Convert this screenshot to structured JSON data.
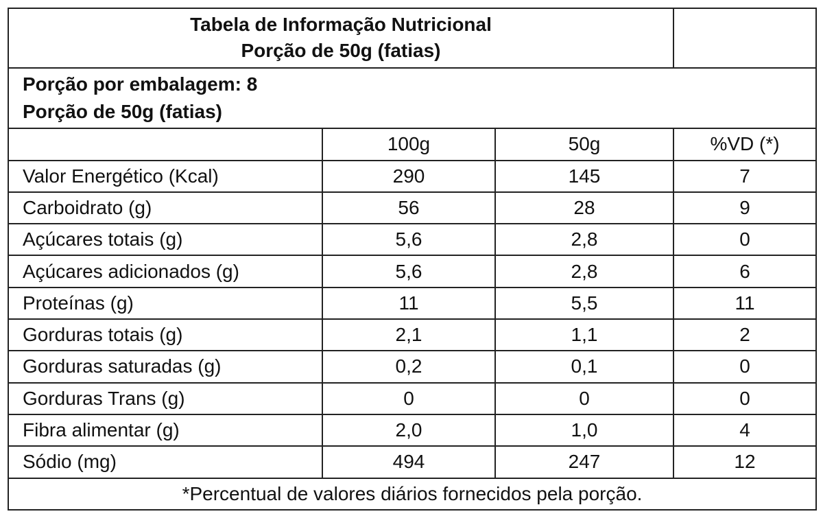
{
  "title": {
    "line1": "Tabela de Informação Nutricional",
    "line2": "Porção de 50g (fatias)"
  },
  "portion_info": {
    "per_package": "Porção por embalagem: 8",
    "portion_size": "Porção de 50g (fatias)"
  },
  "columns": [
    "",
    "100g",
    "50g",
    "%VD (*)"
  ],
  "rows": [
    [
      "Valor Energético (Kcal)",
      "290",
      "145",
      "7"
    ],
    [
      "Carboidrato (g)",
      "56",
      "28",
      "9"
    ],
    [
      "Açúcares totais (g)",
      "5,6",
      "2,8",
      "0"
    ],
    [
      "Açúcares adicionados (g)",
      "5,6",
      "2,8",
      "6"
    ],
    [
      "Proteínas (g)",
      "11",
      "5,5",
      "11"
    ],
    [
      "Gorduras totais (g)",
      "2,1",
      "1,1",
      "2"
    ],
    [
      "Gorduras saturadas (g)",
      "0,2",
      "0,1",
      "0"
    ],
    [
      "Gorduras Trans (g)",
      "0",
      "0",
      "0"
    ],
    [
      "Fibra alimentar (g)",
      "2,0",
      "1,0",
      "4"
    ],
    [
      "Sódio (mg)",
      "494",
      "247",
      "12"
    ]
  ],
  "footnote": "*Percentual de valores diários fornecidos pela porção."
}
